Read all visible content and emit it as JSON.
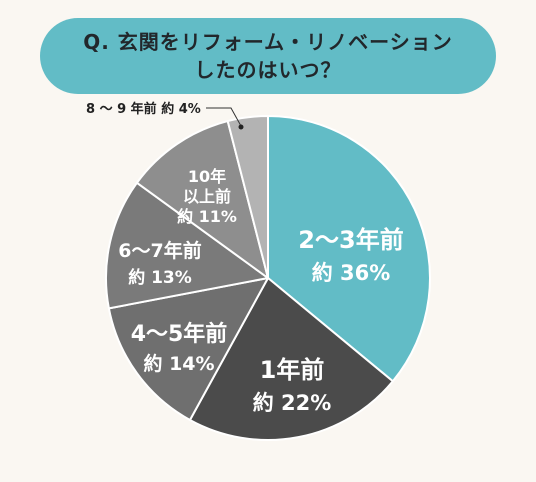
{
  "title": {
    "line1": "Q. 玄関をリフォーム・リノベーション",
    "line2": "したのはいつ？"
  },
  "colors": {
    "background": "#faf7f2",
    "title_bg": "#62bcc6",
    "title_text": "#22272b",
    "slice_2_3": "#62bcc6",
    "slice_1": "#4b4b4b",
    "slice_4_5": "#6f6f6f",
    "slice_6_7": "#7a7a7a",
    "slice_10": "#8e8e8e",
    "slice_8_9": "#b3b3b3",
    "slice_border": "#ffffff"
  },
  "chart_data": {
    "type": "pie",
    "title": "Q. 玄関をリフォーム・リノベーション したのはいつ？",
    "start": "12 o'clock, clockwise",
    "slices": [
      {
        "label": "2～3年前",
        "value": 36,
        "value_label": "約 36%",
        "color": "#62bcc6"
      },
      {
        "label": "1年前",
        "value": 22,
        "value_label": "約 22%",
        "color": "#4b4b4b"
      },
      {
        "label": "4～5年前",
        "value": 14,
        "value_label": "約 14%",
        "color": "#6f6f6f"
      },
      {
        "label": "6～7年前",
        "value": 13,
        "value_label": "約 13%",
        "color": "#7a7a7a"
      },
      {
        "label": "10年 以上前",
        "value": 11,
        "value_label": "約 11%",
        "color": "#8e8e8e"
      },
      {
        "label": "8 ～ 9 年前",
        "value": 4,
        "value_label": "約 4%",
        "color": "#b3b3b3"
      }
    ],
    "callout": {
      "text": "8 ～ 9 年前 約 4%"
    }
  }
}
